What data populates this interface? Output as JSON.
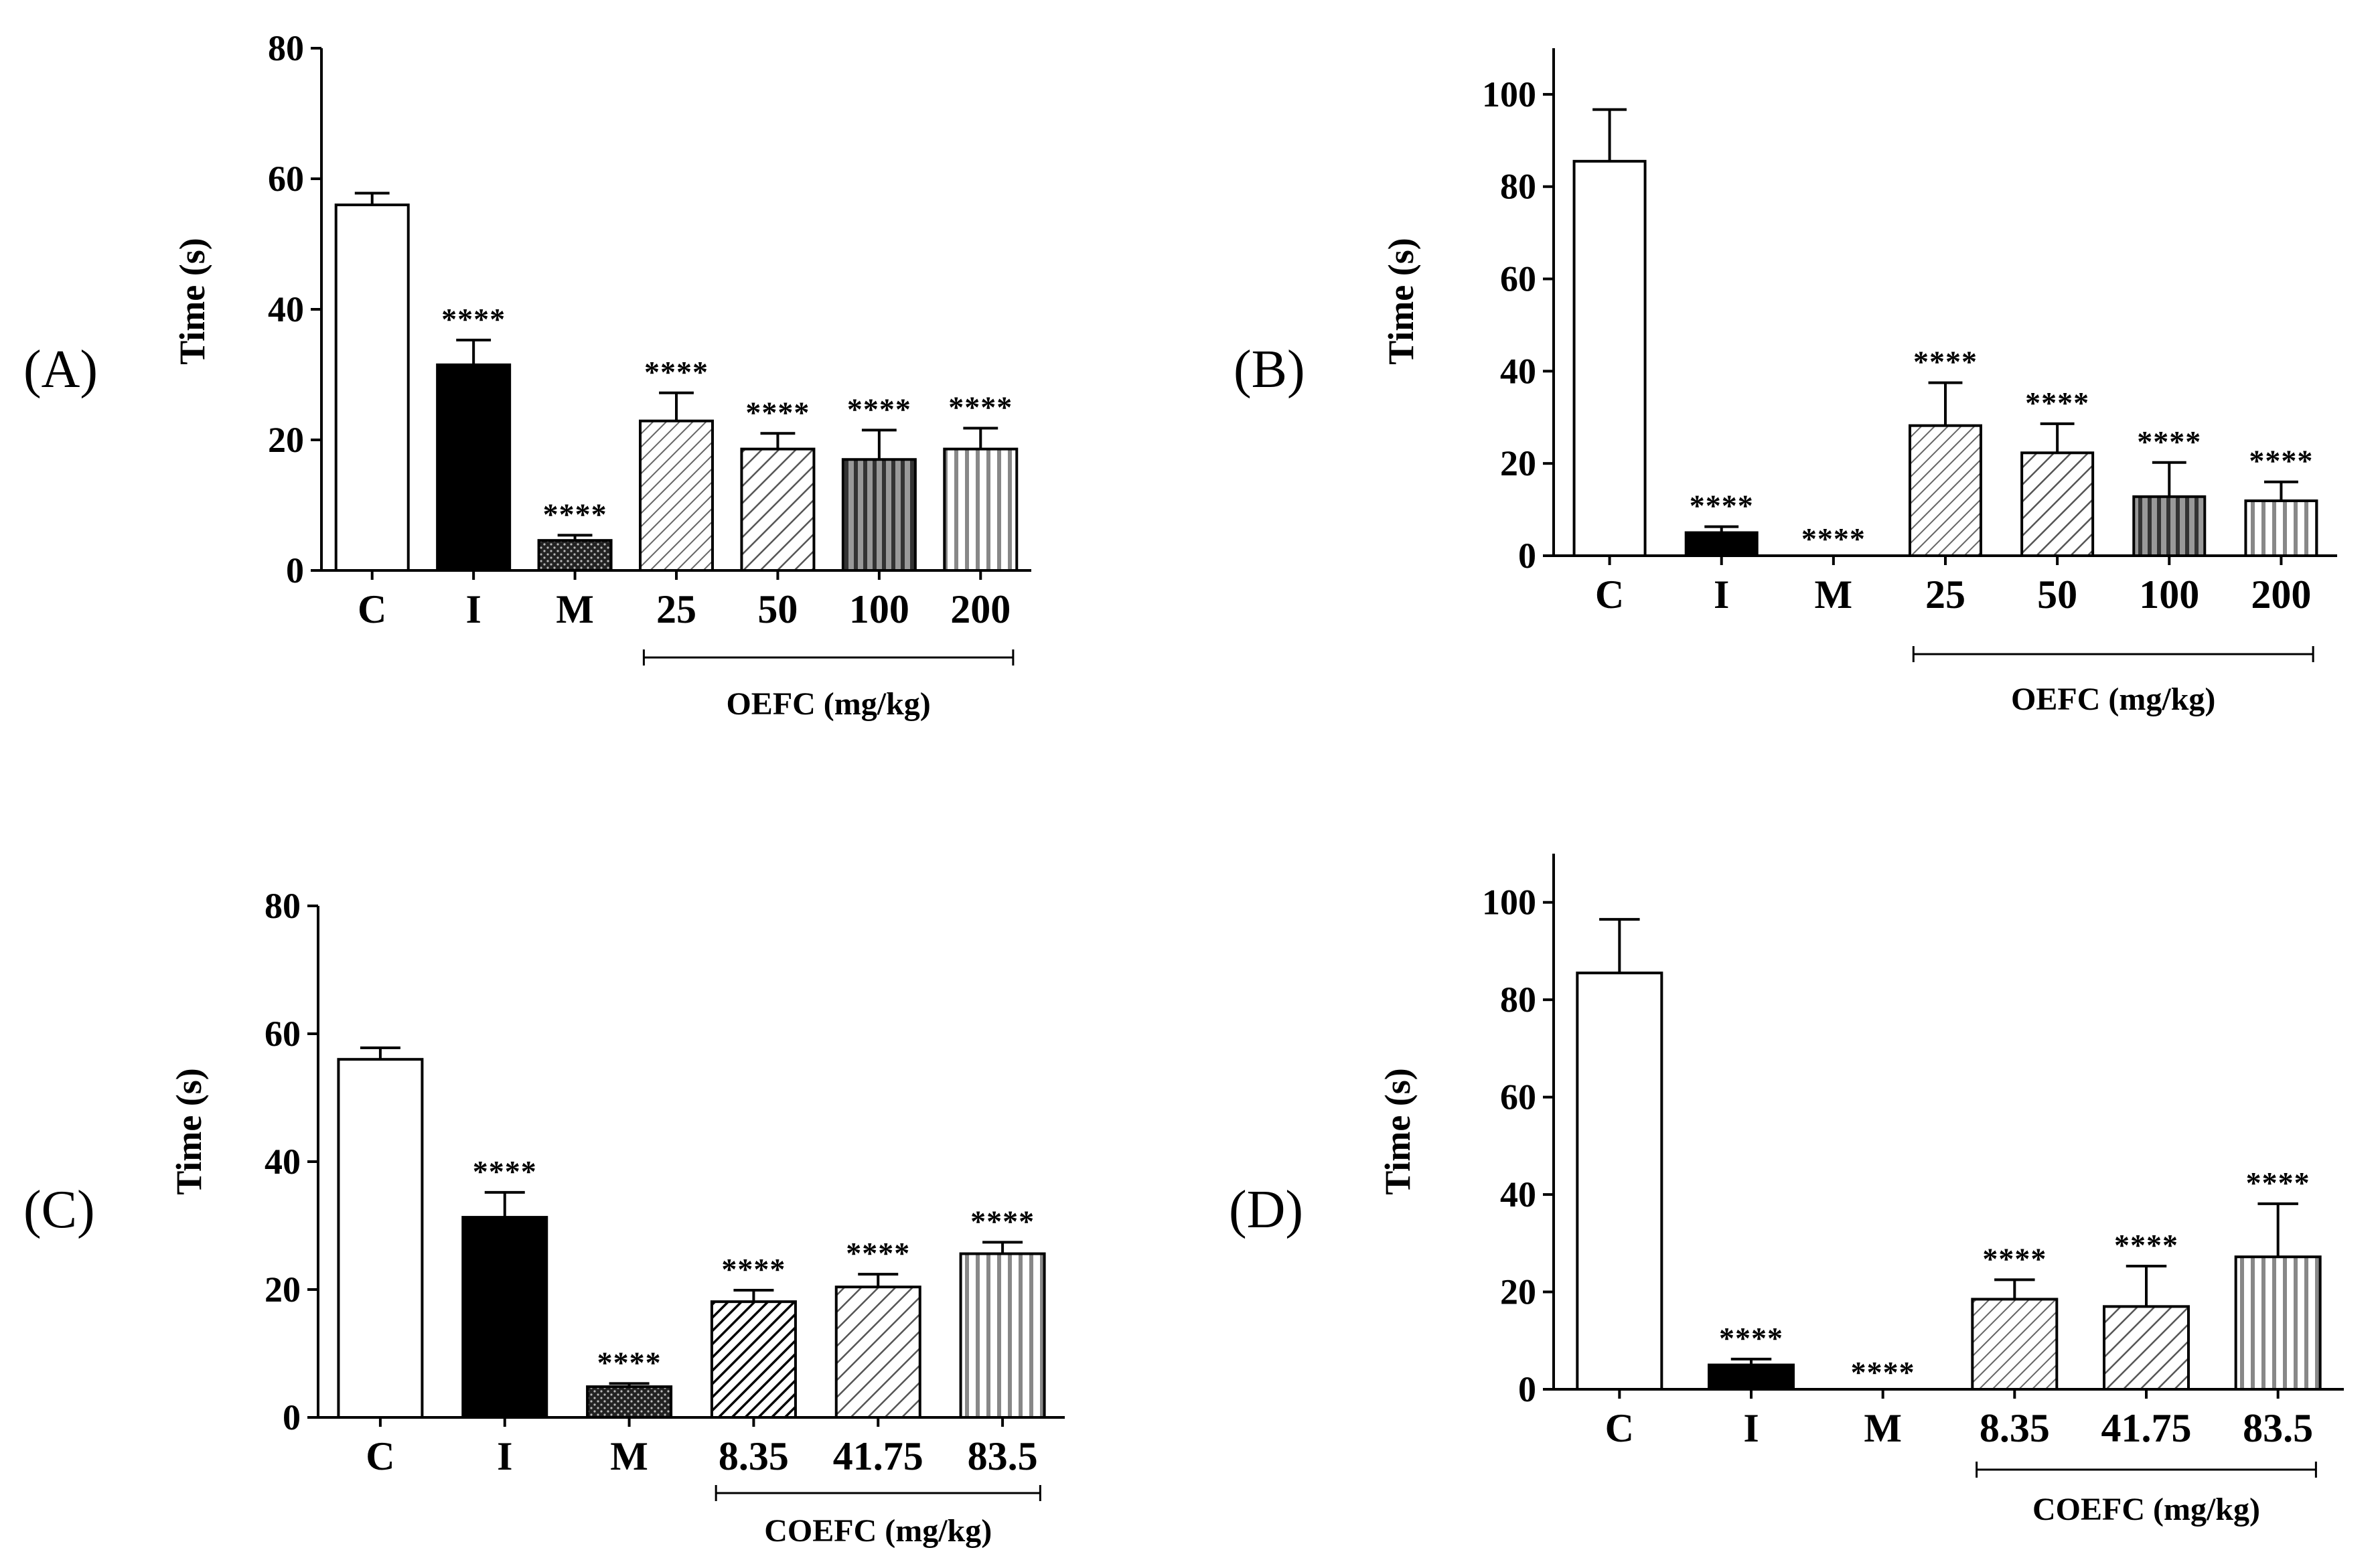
{
  "chart_data": [
    {
      "panel": "(A)",
      "type": "bar",
      "ylabel": "Time (s)",
      "ylim": [
        0,
        80
      ],
      "yticks": [
        "0",
        "20",
        "40",
        "60",
        "80"
      ],
      "categories": [
        "C",
        "I",
        "M",
        "25",
        "50",
        "100",
        "200"
      ],
      "values": [
        56,
        31.5,
        4.6,
        22.9,
        18.6,
        17,
        18.6
      ],
      "errors": [
        1.8,
        3.8,
        0.8,
        4.3,
        2.4,
        4.5,
        3.2
      ],
      "significance": [
        "",
        "****",
        "****",
        "****",
        "****",
        "****",
        "****"
      ],
      "patterns": [
        "white",
        "black",
        "dots",
        "diag-fine",
        "diag",
        "vert-dark",
        "vert-light"
      ],
      "group": {
        "label": "OEFC (mg/kg)",
        "from": 3,
        "to": 6
      }
    },
    {
      "panel": "(B)",
      "type": "bar",
      "ylabel": "Time (s)",
      "ylim": [
        0,
        110
      ],
      "yticks": [
        "0",
        "20",
        "40",
        "60",
        "80",
        "100"
      ],
      "categories": [
        "C",
        "I",
        "M",
        "25",
        "50",
        "100",
        "200"
      ],
      "values": [
        85.5,
        5,
        0,
        28.2,
        22.3,
        12.8,
        11.9
      ],
      "errors": [
        11.2,
        1.3,
        0,
        9.3,
        6.3,
        7.4,
        4.1
      ],
      "significance": [
        "",
        "****",
        "****",
        "****",
        "****",
        "****",
        "****"
      ],
      "patterns": [
        "white",
        "black",
        "dots",
        "diag-fine",
        "diag",
        "vert-dark",
        "vert-light"
      ],
      "group": {
        "label": "OEFC (mg/kg)",
        "from": 3,
        "to": 6
      }
    },
    {
      "panel": "(C)",
      "type": "bar",
      "ylabel": "Time (s)",
      "ylim": [
        0,
        80
      ],
      "yticks": [
        "0",
        "20",
        "40",
        "60",
        "80"
      ],
      "categories": [
        "C",
        "I",
        "M",
        "8.35",
        "41.75",
        "83.5"
      ],
      "values": [
        56,
        31.3,
        4.8,
        18.1,
        20.4,
        25.6
      ],
      "errors": [
        1.8,
        3.9,
        0.5,
        1.8,
        2,
        1.8
      ],
      "significance": [
        "",
        "****",
        "****",
        "****",
        "****",
        "****"
      ],
      "patterns": [
        "white",
        "black",
        "dots",
        "diag-dark",
        "diag",
        "vert-light"
      ],
      "group": {
        "label": "COEFC (mg/kg)",
        "from": 3,
        "to": 5
      }
    },
    {
      "panel": "(D)",
      "type": "bar",
      "ylabel": "Time (s)",
      "ylim": [
        0,
        110
      ],
      "yticks": [
        "0",
        "20",
        "40",
        "60",
        "80",
        "100"
      ],
      "categories": [
        "C",
        "I",
        "M",
        "8.35",
        "41.75",
        "83.5"
      ],
      "values": [
        85.5,
        5,
        0,
        18.5,
        17,
        27.2
      ],
      "errors": [
        11,
        1.2,
        0,
        4,
        8.3,
        10.9
      ],
      "significance": [
        "",
        "****",
        "****",
        "****",
        "****",
        "****"
      ],
      "patterns": [
        "white",
        "black",
        "dots",
        "diag-fine",
        "diag",
        "vert-light"
      ],
      "group": {
        "label": "COEFC (mg/kg)",
        "from": 3,
        "to": 5
      }
    }
  ]
}
